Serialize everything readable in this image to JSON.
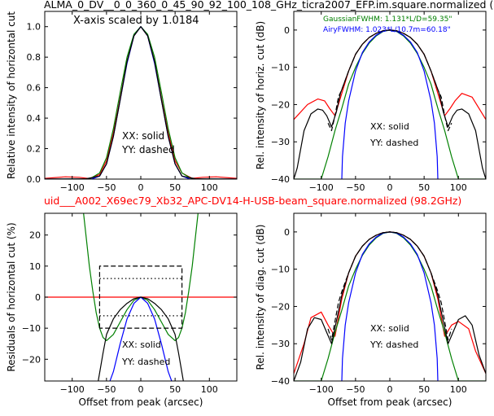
{
  "figure": {
    "top_title": "ALMA_0_DV__0_0_360_0_45_90_92_100_108_GHz_ticra2007_EFP.im.square.normalized (",
    "middle_title": "uid___A002_X69ec79_Xb32_APC-DV14-H-USB-beam_square.normalized (98.2GHz)",
    "colors": {
      "black": "#000000",
      "red": "#ff0000",
      "green": "#008000",
      "blue": "#0000ff"
    }
  },
  "chart_data": [
    {
      "id": "top_left",
      "type": "line",
      "xlabel": "",
      "ylabel": "Relative intensity of horizontal cut",
      "xlim": [
        -140,
        140
      ],
      "ylim": [
        0,
        1.1
      ],
      "xticks": [
        -100,
        -50,
        0,
        50,
        100
      ],
      "yticks": [
        0.0,
        0.2,
        0.4,
        0.6,
        0.8,
        1.0
      ],
      "annotations": [
        "X-axis scaled by 1.0184",
        "XX: solid",
        "YY: dashed"
      ],
      "series": [
        {
          "color": "red",
          "style": "solid",
          "x": [
            -140,
            -110,
            -90,
            -75,
            -60,
            -50,
            -40,
            -30,
            -20,
            -10,
            0,
            10,
            20,
            30,
            40,
            50,
            60,
            75,
            90,
            110,
            140
          ],
          "y": [
            0.005,
            0.015,
            0.012,
            0.004,
            0.03,
            0.12,
            0.3,
            0.53,
            0.77,
            0.94,
            1.0,
            0.94,
            0.77,
            0.53,
            0.3,
            0.12,
            0.04,
            0.005,
            0.012,
            0.015,
            0.005
          ]
        },
        {
          "color": "green",
          "style": "solid",
          "x": [
            -140,
            -75,
            -60,
            -50,
            -40,
            -30,
            -20,
            -10,
            0,
            10,
            20,
            30,
            40,
            50,
            60,
            75,
            140
          ],
          "y": [
            0,
            0,
            0.04,
            0.14,
            0.33,
            0.57,
            0.8,
            0.95,
            1.0,
            0.95,
            0.8,
            0.57,
            0.33,
            0.14,
            0.04,
            0,
            0
          ]
        },
        {
          "color": "blue",
          "style": "solid",
          "x": [
            -140,
            -72,
            -60,
            -50,
            -40,
            -30,
            -20,
            -10,
            0,
            10,
            20,
            30,
            40,
            50,
            60,
            72,
            140
          ],
          "y": [
            0,
            0,
            0.02,
            0.1,
            0.28,
            0.52,
            0.76,
            0.94,
            1.0,
            0.94,
            0.76,
            0.52,
            0.28,
            0.1,
            0.02,
            0,
            0
          ]
        },
        {
          "color": "black",
          "style": "solid",
          "x": [
            -140,
            -80,
            -60,
            -50,
            -40,
            -30,
            -20,
            -10,
            0,
            10,
            20,
            30,
            40,
            50,
            60,
            80,
            140
          ],
          "y": [
            0,
            0.002,
            0.02,
            0.1,
            0.28,
            0.52,
            0.77,
            0.94,
            1.0,
            0.94,
            0.77,
            0.52,
            0.28,
            0.1,
            0.02,
            0.002,
            0
          ]
        }
      ]
    },
    {
      "id": "top_right",
      "type": "line",
      "xlabel": "",
      "ylabel": "Rel. intensity of horiz. cut (dB)",
      "xlim": [
        -140,
        140
      ],
      "ylim": [
        -40,
        5
      ],
      "xticks": [
        -100,
        -50,
        0,
        50,
        100
      ],
      "yticks": [
        -40,
        -30,
        -20,
        -10,
        0
      ],
      "annotations": [
        "XX: solid",
        "YY: dashed"
      ],
      "legend": [
        "GaussianFWHM: 1.131*L/D=59.35\"",
        "AiryFWHM: 1.023*L/10.7m=60.18\""
      ],
      "series": [
        {
          "color": "red",
          "style": "solid",
          "x": [
            -140,
            -120,
            -105,
            -95,
            -88,
            -80,
            -70,
            -60,
            -50,
            -40,
            -30,
            -20,
            -10,
            0,
            10,
            20,
            30,
            40,
            50,
            60,
            70,
            80,
            88,
            95,
            105,
            120,
            140
          ],
          "y": [
            -24,
            -20,
            -18.5,
            -19,
            -21,
            -23,
            -17,
            -11,
            -6.5,
            -3.8,
            -2,
            -0.9,
            -0.2,
            0,
            -0.2,
            -0.9,
            -2,
            -3.8,
            -6.5,
            -11,
            -17,
            -23,
            -21,
            -19,
            -17,
            -18,
            -24
          ]
        },
        {
          "color": "green",
          "style": "solid",
          "x": [
            -140,
            -100,
            -90,
            -80,
            -70,
            -60,
            -50,
            -40,
            -30,
            -20,
            -10,
            0,
            10,
            20,
            30,
            40,
            50,
            60,
            70,
            80,
            90,
            100,
            140
          ],
          "y": [
            -40,
            -40,
            -34,
            -27,
            -21,
            -14.5,
            -10,
            -6.3,
            -3.5,
            -1.6,
            -0.4,
            0,
            -0.4,
            -1.6,
            -3.5,
            -6.3,
            -10,
            -14.5,
            -21,
            -27,
            -34,
            -40,
            -40
          ]
        },
        {
          "color": "blue",
          "style": "solid",
          "x": [
            -70,
            -69,
            -65,
            -60,
            -50,
            -40,
            -30,
            -20,
            -10,
            0,
            10,
            20,
            30,
            40,
            50,
            60,
            65,
            69,
            70
          ],
          "y": [
            -40,
            -34,
            -25,
            -19,
            -11,
            -6,
            -3.2,
            -1.4,
            -0.3,
            0,
            -0.3,
            -1.4,
            -3.2,
            -6,
            -11,
            -19,
            -25,
            -34,
            -40
          ]
        },
        {
          "color": "black",
          "style": "solid",
          "x": [
            -140,
            -135,
            -125,
            -115,
            -105,
            -98,
            -92,
            -85,
            -78,
            -72,
            -60,
            -50,
            -40,
            -30,
            -20,
            -10,
            0,
            10,
            20,
            30,
            40,
            50,
            60,
            72,
            78,
            85,
            92,
            98,
            105,
            115,
            125,
            135,
            140
          ],
          "y": [
            -40,
            -37,
            -27,
            -22.5,
            -21.2,
            -21.5,
            -23,
            -26,
            -22,
            -17,
            -11,
            -6.5,
            -3.8,
            -2,
            -0.9,
            -0.2,
            0,
            -0.2,
            -0.9,
            -2,
            -3.8,
            -6.5,
            -11,
            -17,
            -22,
            -26,
            -23,
            -21.5,
            -21.2,
            -22.5,
            -27,
            -37,
            -40
          ]
        },
        {
          "color": "black",
          "style": "dashed",
          "x": [
            -90,
            -85,
            -80,
            -75,
            -70,
            -60,
            -50,
            -40,
            -30,
            -20,
            -10,
            0,
            10,
            20,
            30,
            40,
            50,
            60,
            70,
            75,
            80,
            85,
            90
          ],
          "y": [
            -25,
            -27,
            -23,
            -18,
            -16,
            -11,
            -6.5,
            -3.8,
            -2,
            -0.9,
            -0.2,
            0,
            -0.2,
            -0.9,
            -2,
            -3.8,
            -6.5,
            -11,
            -16,
            -18,
            -23,
            -27,
            -25
          ]
        }
      ]
    },
    {
      "id": "bottom_left",
      "type": "line",
      "xlabel": "Offset from peak (arcsec)",
      "ylabel": "Residuals of horizontal cut (%)",
      "xlim": [
        -140,
        140
      ],
      "ylim": [
        -27,
        27
      ],
      "xticks": [
        -100,
        -50,
        0,
        50,
        100
      ],
      "yticks": [
        -20,
        -10,
        0,
        10,
        20
      ],
      "annotations": [
        "XX: solid",
        "YY: dashed"
      ],
      "series": [
        {
          "color": "red",
          "style": "solid",
          "x": [
            -140,
            140
          ],
          "y": [
            0,
            0
          ]
        },
        {
          "color": "green",
          "style": "solid",
          "x": [
            -85,
            -80,
            -75,
            -70,
            -65,
            -60,
            -55,
            -50,
            -40,
            -30,
            -20,
            -10,
            0,
            10,
            20,
            30,
            40,
            50,
            55,
            60,
            65,
            70,
            75,
            80,
            85
          ],
          "y": [
            30,
            20,
            10,
            2,
            -5,
            -10,
            -13,
            -14,
            -12,
            -8,
            -4,
            -1,
            0,
            -1,
            -4,
            -8,
            -12,
            -14,
            -13,
            -10,
            -5,
            2,
            10,
            20,
            30
          ]
        },
        {
          "color": "blue",
          "style": "solid",
          "x": [
            -45,
            -40,
            -30,
            -20,
            -10,
            0,
            10,
            20,
            30,
            40,
            45
          ],
          "y": [
            -27,
            -24,
            -15,
            -7,
            -2,
            0,
            -2,
            -7,
            -15,
            -24,
            -27
          ]
        },
        {
          "color": "black",
          "style": "solid",
          "x": [
            -62,
            -55,
            -50,
            -40,
            -30,
            -20,
            -10,
            0,
            10,
            20,
            30,
            40,
            50,
            55,
            62
          ],
          "y": [
            -27,
            -18,
            -12,
            -7,
            -4,
            -2,
            -0.5,
            0,
            -0.5,
            -2,
            -4,
            -7,
            -12,
            -18,
            -27
          ]
        },
        {
          "color": "black",
          "style": "dashed",
          "x": [
            -60,
            -60,
            60,
            60,
            -60
          ],
          "y": [
            -10,
            10,
            10,
            -10,
            -10
          ]
        },
        {
          "color": "black",
          "style": "dotted",
          "x": [
            -60,
            60
          ],
          "y": [
            6,
            6
          ]
        },
        {
          "color": "black",
          "style": "dotted",
          "x": [
            -60,
            60
          ],
          "y": [
            -6,
            -6
          ]
        }
      ]
    },
    {
      "id": "bottom_right",
      "type": "line",
      "xlabel": "Offset from peak (arcsec)",
      "ylabel": "Rel. intensity of diag. cut (dB)",
      "xlim": [
        -140,
        140
      ],
      "ylim": [
        -40,
        5
      ],
      "xticks": [
        -100,
        -50,
        0,
        50,
        100
      ],
      "yticks": [
        -40,
        -30,
        -20,
        -10,
        0
      ],
      "annotations": [
        "XX: solid",
        "YY: dashed"
      ],
      "series": [
        {
          "color": "red",
          "style": "solid",
          "x": [
            -140,
            -125,
            -115,
            -100,
            -90,
            -80,
            -70,
            -60,
            -50,
            -40,
            -30,
            -20,
            -10,
            0,
            10,
            20,
            30,
            40,
            50,
            60,
            70,
            80,
            90,
            100,
            115,
            125,
            140
          ],
          "y": [
            -38,
            -30,
            -23,
            -21.5,
            -25,
            -28,
            -18,
            -11,
            -6.5,
            -3.8,
            -2,
            -0.9,
            -0.2,
            0,
            -0.2,
            -0.9,
            -2,
            -3.8,
            -6.5,
            -11,
            -18,
            -28,
            -25,
            -24,
            -26,
            -32,
            -38
          ]
        },
        {
          "color": "green",
          "style": "solid",
          "x": [
            -140,
            -100,
            -90,
            -80,
            -70,
            -60,
            -50,
            -40,
            -30,
            -20,
            -10,
            0,
            10,
            20,
            30,
            40,
            50,
            60,
            70,
            80,
            90,
            100,
            140
          ],
          "y": [
            -40,
            -40,
            -34,
            -27,
            -21,
            -14.5,
            -10,
            -6.3,
            -3.5,
            -1.6,
            -0.4,
            0,
            -0.4,
            -1.6,
            -3.5,
            -6.3,
            -10,
            -14.5,
            -21,
            -27,
            -34,
            -40,
            -40
          ]
        },
        {
          "color": "blue",
          "style": "solid",
          "x": [
            -70,
            -69,
            -65,
            -60,
            -50,
            -40,
            -30,
            -20,
            -10,
            0,
            10,
            20,
            30,
            40,
            50,
            60,
            65,
            69,
            70
          ],
          "y": [
            -40,
            -34,
            -25,
            -19,
            -11,
            -6,
            -3.2,
            -1.4,
            -0.3,
            0,
            -0.3,
            -1.4,
            -3.2,
            -6,
            -11,
            -19,
            -25,
            -34,
            -40
          ]
        },
        {
          "color": "black",
          "style": "solid",
          "x": [
            -140,
            -130,
            -120,
            -110,
            -100,
            -92,
            -85,
            -78,
            -70,
            -60,
            -50,
            -40,
            -30,
            -20,
            -10,
            0,
            10,
            20,
            30,
            40,
            50,
            60,
            70,
            78,
            85,
            92,
            100,
            110,
            120,
            130,
            140
          ],
          "y": [
            -40,
            -35,
            -26,
            -23,
            -23.5,
            -27,
            -30,
            -24,
            -17,
            -11,
            -6.5,
            -3.8,
            -2,
            -0.9,
            -0.2,
            0,
            -0.2,
            -0.9,
            -2,
            -3.8,
            -6.5,
            -11,
            -17,
            -24,
            -30,
            -27,
            -23.5,
            -22.5,
            -25,
            -33,
            -38
          ]
        },
        {
          "color": "black",
          "style": "dashed",
          "x": [
            -90,
            -85,
            -80,
            -75,
            -70,
            -60,
            -50,
            -40,
            -30,
            -20,
            -10,
            0,
            10,
            20,
            30,
            40,
            50,
            60,
            70,
            75,
            80,
            85,
            90
          ],
          "y": [
            -26,
            -29,
            -24,
            -19,
            -16,
            -11,
            -6.5,
            -3.8,
            -2,
            -0.9,
            -0.2,
            0,
            -0.2,
            -0.9,
            -2,
            -3.8,
            -6.5,
            -11,
            -16,
            -19,
            -24,
            -29,
            -26
          ]
        }
      ]
    }
  ]
}
